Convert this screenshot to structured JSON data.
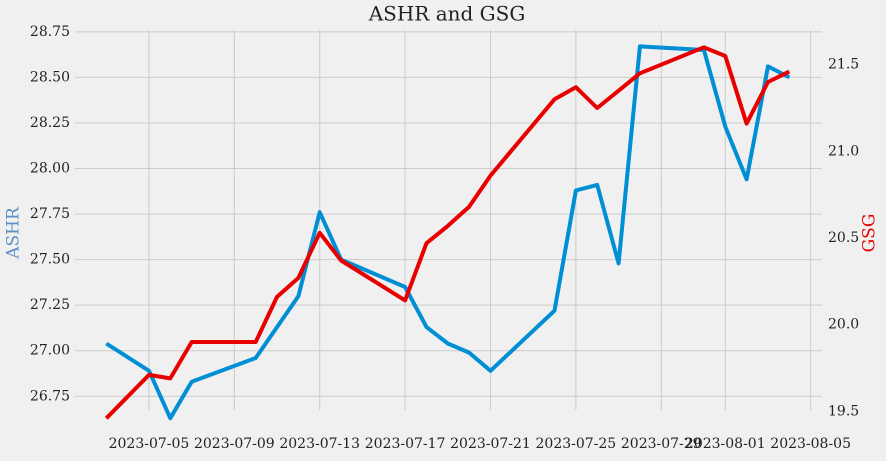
{
  "chart_data": {
    "type": "line",
    "title": "ASHR and GSG",
    "ylabel": "ASHR",
    "y2label": "GSG",
    "grid": true,
    "x": [
      "2023-07-03",
      "2023-07-05",
      "2023-07-06",
      "2023-07-07",
      "2023-07-10",
      "2023-07-11",
      "2023-07-12",
      "2023-07-13",
      "2023-07-14",
      "2023-07-17",
      "2023-07-18",
      "2023-07-19",
      "2023-07-20",
      "2023-07-21",
      "2023-07-24",
      "2023-07-25",
      "2023-07-26",
      "2023-07-27",
      "2023-07-28",
      "2023-07-31",
      "2023-08-01",
      "2023-08-02",
      "2023-08-03",
      "2023-08-04"
    ],
    "xlim": [
      "2023-07-01",
      "2023-08-06"
    ],
    "xticks": [
      "2023-07-05",
      "2023-07-09",
      "2023-07-13",
      "2023-07-17",
      "2023-07-21",
      "2023-07-25",
      "2023-07-29",
      "2023-08-01",
      "2023-08-05"
    ],
    "ylim": [
      26.62,
      28.76
    ],
    "yticks": [
      26.75,
      {
        "value": 27.0,
        "label": "27.00"
      },
      27.25,
      {
        "value": 27.5,
        "label": "27.50"
      },
      27.75,
      {
        "value": 28.0,
        "label": "28.00"
      },
      28.25,
      {
        "value": 28.5,
        "label": "28.50"
      },
      28.75
    ],
    "y2lim": [
      19.45,
      21.7
    ],
    "y2ticks": [
      19.5,
      {
        "value": 20.0,
        "label": "20.0"
      },
      20.5,
      {
        "value": 21.0,
        "label": "21.0"
      },
      21.5
    ],
    "ylabel_color": "#5a8fc0",
    "y2label_color": "#e80000",
    "series": [
      {
        "name": "ASHR",
        "color": "#008fd5",
        "axis": "y",
        "values": [
          27.04,
          26.89,
          26.63,
          26.83,
          26.96,
          27.13,
          27.3,
          27.76,
          27.5,
          27.35,
          27.13,
          27.04,
          26.99,
          26.89,
          27.22,
          27.88,
          27.91,
          27.48,
          28.67,
          28.65,
          28.23,
          27.94,
          28.56,
          28.5
        ]
      },
      {
        "name": "GSG",
        "color": "#e80000",
        "axis": "y2",
        "values": [
          19.46,
          19.71,
          19.69,
          19.9,
          19.9,
          20.16,
          20.27,
          20.53,
          20.37,
          20.14,
          20.47,
          20.57,
          20.68,
          20.86,
          21.3,
          21.37,
          21.25,
          21.35,
          21.45,
          21.6,
          21.55,
          21.16,
          21.4,
          21.46
        ]
      }
    ]
  }
}
